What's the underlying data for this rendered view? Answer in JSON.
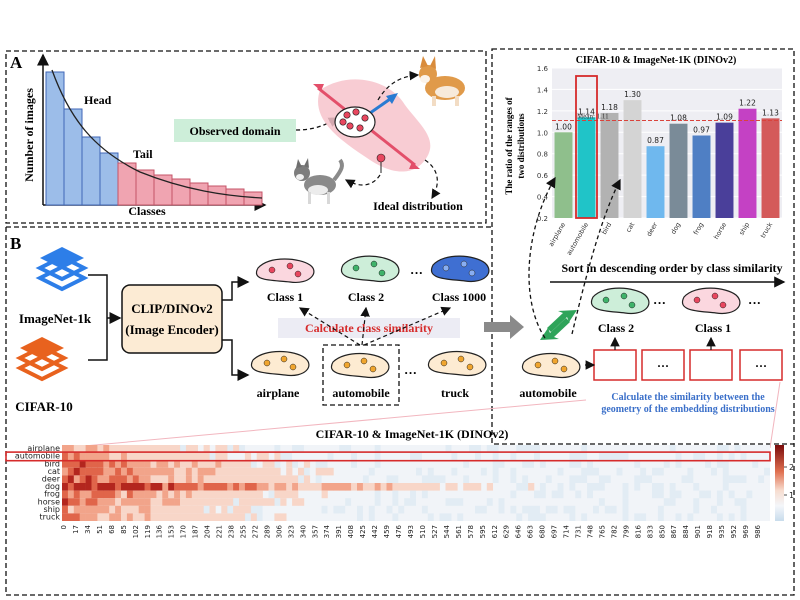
{
  "panel_a": {
    "letter": "A",
    "y_label": "Number of images",
    "x_label": "Classes",
    "head_label": "Head",
    "tail_label": "Tail",
    "observed_label": "Observed domain",
    "ideal_label": "Ideal distribution"
  },
  "panel_b": {
    "letter": "B",
    "dataset_1": "ImageNet-1k",
    "dataset_2": "CIFAR-10",
    "encoder_line1": "CLIP/DINOv2",
    "encoder_line2": "(Image Encoder)",
    "class_1": "Class 1",
    "class_2": "Class 2",
    "class_1000": "Class 1000",
    "ellipsis": "···",
    "calc_label": "Calculate class similarity",
    "cifar_airplane": "airplane",
    "cifar_automobile": "automobile",
    "cifar_truck": "truck",
    "automobile_right": "automobile",
    "sort_label": "Sort in descending order by class similarity",
    "sorted_class_2": "Class 2",
    "sorted_class_1": "Class 1",
    "geom_line1": "Calculate the similarity between the",
    "geom_line2": "geometry of the embedding distributions"
  },
  "bar_chart": {
    "type": "bar",
    "title": "CIFAR-10 & ImageNet-1K (DINOv2)",
    "ylabel_line1": "The ratio of the ranges of",
    "ylabel_line2": "two distributions",
    "ylim": [
      0.2,
      1.6
    ],
    "yticks": [
      0.2,
      0.4,
      0.6,
      0.8,
      1.0,
      1.2,
      1.4,
      1.6
    ],
    "categories": [
      "airplane",
      "automobile",
      "bird",
      "cat",
      "deer",
      "dog",
      "frog",
      "horse",
      "ship",
      "truck"
    ],
    "values": [
      1.0,
      1.14,
      1.18,
      1.3,
      0.87,
      1.08,
      0.97,
      1.09,
      1.22,
      1.13
    ],
    "value_labels": [
      "1.00",
      "1.14",
      "1.18",
      "1.30",
      "0.87",
      "1.08",
      "0.97",
      "1.09",
      "1.22",
      "1.13"
    ],
    "colors": [
      "#8fbf8c",
      "#20c4c8",
      "#b2b2b2",
      "#d4d4d4",
      "#6fb8ee",
      "#7a8b98",
      "#4f7fc4",
      "#4a3f9a",
      "#c441c4",
      "#d45a5a"
    ],
    "mean": 1.11,
    "mean_label": "Mean: 1.11",
    "highlight": "automobile"
  },
  "heatmap": {
    "title": "CIFAR-10 & ImageNet-1K (DINOv2)",
    "rows": [
      "airplane",
      "automobile",
      "bird",
      "cat",
      "deer",
      "dog",
      "frog",
      "horse",
      "ship",
      "truck"
    ],
    "x_ticks": [
      "0",
      "17",
      "34",
      "51",
      "68",
      "85",
      "102",
      "119",
      "136",
      "153",
      "170",
      "187",
      "204",
      "221",
      "238",
      "255",
      "272",
      "289",
      "306",
      "323",
      "340",
      "357",
      "374",
      "391",
      "408",
      "425",
      "442",
      "459",
      "476",
      "493",
      "510",
      "527",
      "544",
      "561",
      "578",
      "595",
      "612",
      "629",
      "646",
      "663",
      "680",
      "697",
      "714",
      "731",
      "748",
      "765",
      "782",
      "799",
      "816",
      "833",
      "850",
      "867",
      "884",
      "901",
      "918",
      "935",
      "952",
      "969",
      "986"
    ],
    "colorbar_ticks": [
      "2",
      "1"
    ],
    "highlight_row": "automobile"
  }
}
